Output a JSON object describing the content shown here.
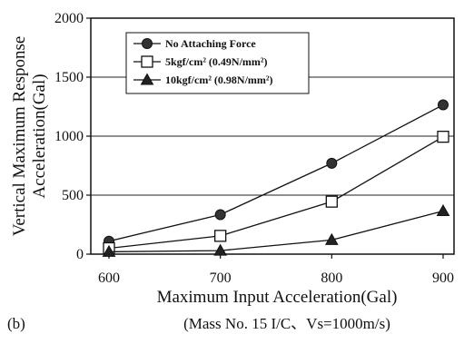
{
  "chart_data": {
    "type": "line",
    "xlabel": "Maximum Input Acceleration(Gal)",
    "ylabel_line1": "Vertical Maximum Response",
    "ylabel_line2": "Acceleration(Gal)",
    "x": [
      600,
      700,
      800,
      900
    ],
    "xlim": [
      600,
      900
    ],
    "ylim": [
      0,
      2000
    ],
    "x_ticks": [
      "600",
      "700",
      "800",
      "900"
    ],
    "y_ticks": [
      "0",
      "500",
      "1000",
      "1500",
      "2000"
    ],
    "grid": "horizontal",
    "legend_position": "top-left",
    "series": [
      {
        "name": "No Attaching Force",
        "marker": "filled-circle",
        "values": [
          110,
          335,
          770,
          1265
        ]
      },
      {
        "name": "5kgf/cm² (0.49N/mm²)",
        "marker": "open-square",
        "values": [
          50,
          155,
          445,
          995
        ]
      },
      {
        "name": "10kgf/cm² (0.98N/mm²)",
        "marker": "filled-triangle",
        "values": [
          20,
          30,
          120,
          365
        ]
      }
    ],
    "panel_label": "(b)",
    "note": "(Mass No. 15 I/C、Vs=1000m/s)"
  }
}
